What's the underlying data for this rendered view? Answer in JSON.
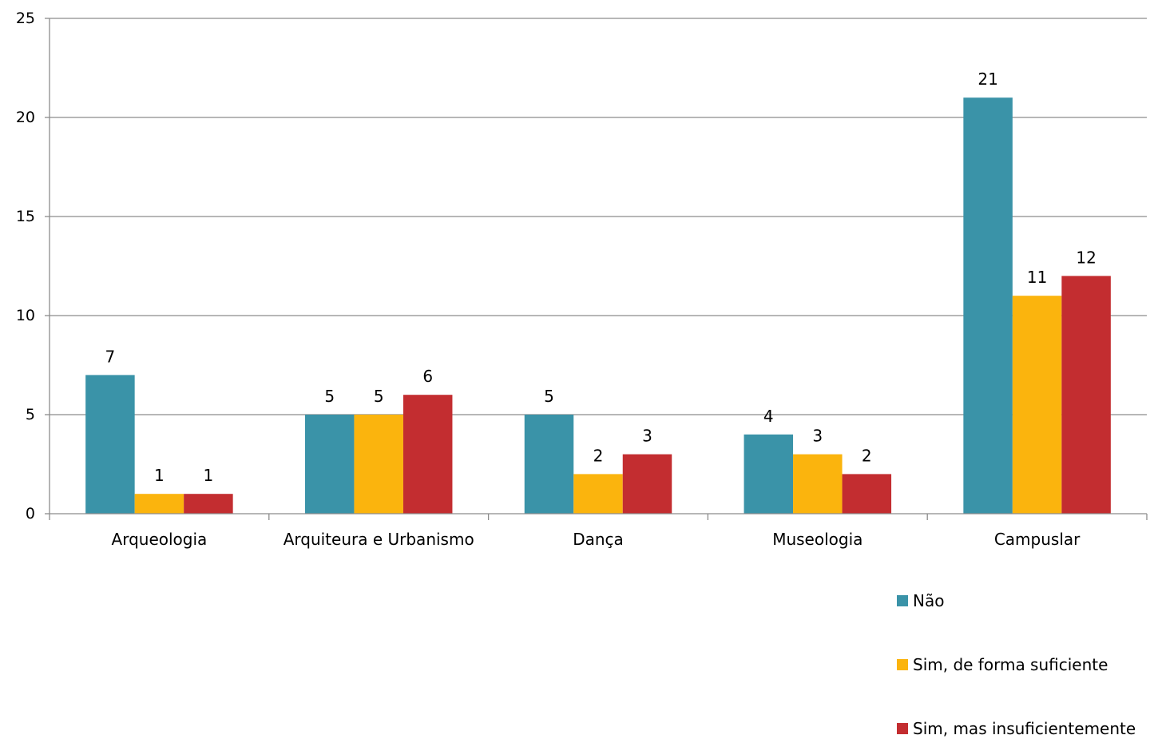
{
  "chart_data": {
    "type": "bar",
    "title": "",
    "xlabel": "",
    "ylabel": "",
    "categories": [
      "Arqueologia",
      "Arquiteura e Urbanismo",
      "Dança",
      "Museologia",
      "Campuslar"
    ],
    "series": [
      {
        "name": "Não",
        "color": "#3a93a8",
        "values": [
          7,
          5,
          5,
          4,
          21
        ]
      },
      {
        "name": "Sim, de forma suficiente",
        "color": "#fbb40d",
        "values": [
          1,
          5,
          2,
          3,
          11
        ]
      },
      {
        "name": "Sim, mas insuficientemente",
        "color": "#c32d30",
        "values": [
          1,
          6,
          3,
          2,
          12
        ]
      }
    ],
    "ylim": [
      0,
      25
    ],
    "yticks": [
      0,
      5,
      10,
      15,
      20,
      25
    ],
    "grid": true,
    "legend": "bottom-right",
    "data_labels": true
  }
}
